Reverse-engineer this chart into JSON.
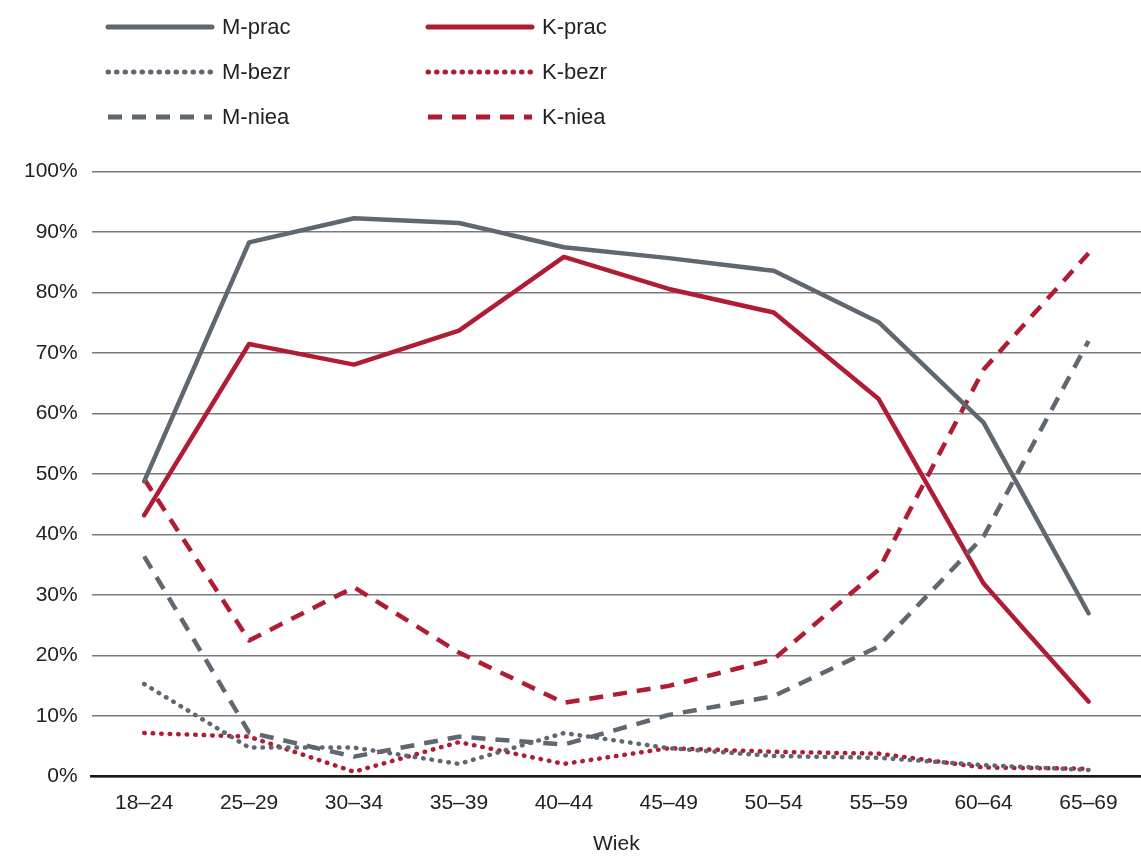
{
  "chart_data": {
    "type": "line",
    "xlabel": "Wiek",
    "categories": [
      "18–24",
      "25–29",
      "30–34",
      "35–39",
      "40–44",
      "45–49",
      "50–54",
      "55–59",
      "60–64",
      "65–69"
    ],
    "series": [
      {
        "name": "M-prac",
        "color": "#5f6770",
        "line_style": "solid",
        "values": [
          48.8,
          88.3,
          92.3,
          91.5,
          87.5,
          85.7,
          83.6,
          75.1,
          58.5,
          27.0
        ]
      },
      {
        "name": "M-bezr",
        "color": "#5f6770",
        "line_style": "dotted",
        "values": [
          15.3,
          4.8,
          4.8,
          2.1,
          7.2,
          4.7,
          3.4,
          3.1,
          1.9,
          1.1
        ]
      },
      {
        "name": "M-niea",
        "color": "#5f6770",
        "line_style": "dashed",
        "values": [
          36.4,
          7.3,
          3.3,
          6.6,
          5.3,
          10.2,
          13.3,
          21.5,
          39.7,
          72.0
        ]
      },
      {
        "name": "K-prac",
        "color": "#b01c33",
        "line_style": "solid",
        "values": [
          43.2,
          71.5,
          68.1,
          73.7,
          85.9,
          80.6,
          76.7,
          62.4,
          31.9,
          12.4
        ]
      },
      {
        "name": "K-bezr",
        "color": "#b01c33",
        "line_style": "dotted",
        "values": [
          7.2,
          6.6,
          0.8,
          5.7,
          2.1,
          4.7,
          4.1,
          3.8,
          1.5,
          1.3
        ]
      },
      {
        "name": "K-niea",
        "color": "#b01c33",
        "line_style": "dashed",
        "values": [
          49.2,
          22.5,
          31.3,
          20.5,
          12.2,
          15.0,
          19.4,
          34.2,
          67.3,
          86.5
        ]
      }
    ],
    "ylim": [
      0,
      100
    ],
    "yticks": [
      {
        "value": 0,
        "label": "0%"
      },
      {
        "value": 10,
        "label": "10%"
      },
      {
        "value": 20,
        "label": "20%"
      },
      {
        "value": 30,
        "label": "30%"
      },
      {
        "value": 40,
        "label": "40%"
      },
      {
        "value": 50,
        "label": "50%"
      },
      {
        "value": 60,
        "label": "60%"
      },
      {
        "value": 70,
        "label": "70%"
      },
      {
        "value": 80,
        "label": "80%"
      },
      {
        "value": 90,
        "label": "90%"
      },
      {
        "value": 100,
        "label": "100%"
      }
    ],
    "grid": "y",
    "legend": "top left"
  }
}
